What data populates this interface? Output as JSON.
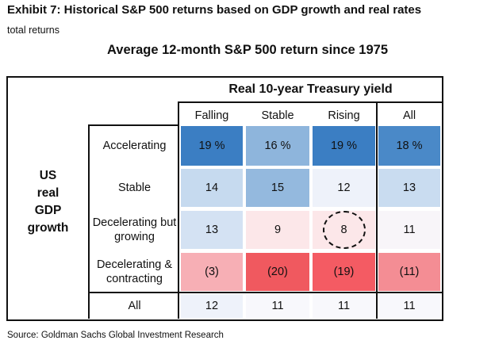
{
  "title": "Exhibit 7: Historical S&P 500 returns based on GDP growth and real rates",
  "subtitle_small": "total returns",
  "source": "Source: Goldman Sachs Global Investment Research",
  "chart_data": {
    "type": "table",
    "title": "Average 12-month S&P 500 return since 1975",
    "column_group_label": "Real 10-year Treasury yield",
    "row_group_label": [
      "US",
      "real",
      "GDP",
      "growth"
    ],
    "columns": [
      "Falling",
      "Stable",
      "Rising",
      "All"
    ],
    "rows": [
      {
        "label": "Accelerating",
        "display": [
          "19 %",
          "16 %",
          "19 %",
          "18 %"
        ],
        "values": [
          19,
          16,
          19,
          18
        ],
        "colors": [
          "#3b7ec3",
          "#8eb5dc",
          "#3b7ec3",
          "#4a89c8"
        ]
      },
      {
        "label": "Stable",
        "display": [
          "14",
          "15",
          "12",
          "13"
        ],
        "values": [
          14,
          15,
          12,
          13
        ],
        "colors": [
          "#c6daef",
          "#94b9de",
          "#eef2fa",
          "#c9dcf0"
        ]
      },
      {
        "label": "Decelerating but growing",
        "display": [
          "13",
          "9",
          "8",
          "11"
        ],
        "values": [
          13,
          9,
          8,
          11
        ],
        "colors": [
          "#d4e2f3",
          "#fce7e9",
          "#fce7e9",
          "#f8f5f9"
        ],
        "highlighted": [
          false,
          false,
          true,
          false
        ]
      },
      {
        "label": "Decelerating & contracting",
        "display": [
          "(3)",
          "(20)",
          "(19)",
          "(11)"
        ],
        "values": [
          -3,
          -20,
          -19,
          -11
        ],
        "colors": [
          "#f7afb5",
          "#f0595f",
          "#f45b63",
          "#f48d94"
        ]
      },
      {
        "label": "All",
        "display": [
          "12",
          "11",
          "11",
          "11"
        ],
        "values": [
          12,
          11,
          11,
          11
        ],
        "colors": [
          "#eef2fa",
          "#f8f8fc",
          "#f8f8fc",
          "#f8f8fc"
        ]
      }
    ]
  }
}
